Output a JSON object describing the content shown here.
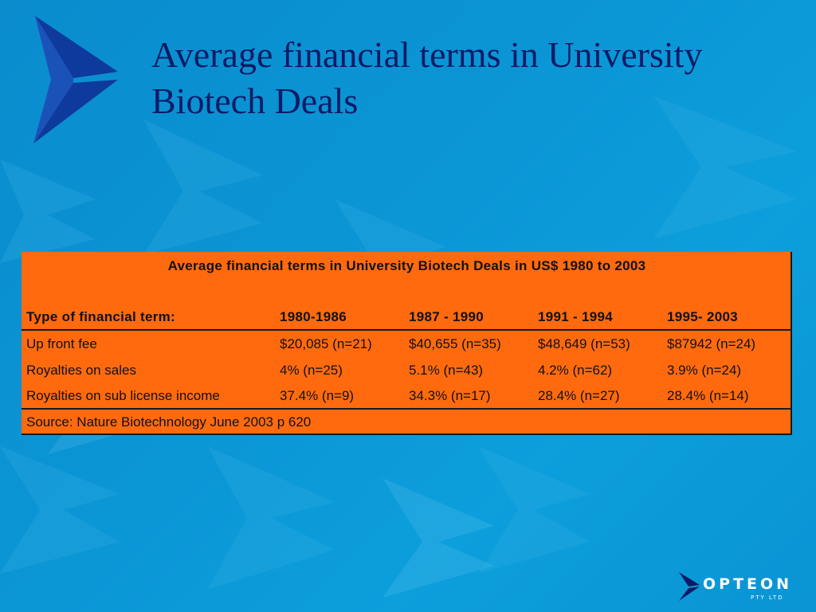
{
  "slide": {
    "title_line1": "Average financial terms in University",
    "title_line2": "Biotech Deals"
  },
  "table": {
    "caption": "Average financial terms in University Biotech Deals in US$ 1980 to 2003",
    "headers": [
      "Type of financial term:",
      "1980-1986",
      "1987 - 1990",
      "1991 - 1994",
      "1995- 2003"
    ],
    "rows": [
      [
        "Up front fee",
        "$20,085 (n=21)",
        "$40,655 (n=35)",
        "$48,649 (n=53)",
        "$87942 (n=24)"
      ],
      [
        "Royalties on sales",
        "4% (n=25)",
        "5.1% (n=43)",
        "4.2% (n=62)",
        "3.9% (n=24)"
      ],
      [
        "Royalties on sub license income",
        "37.4% (n=9)",
        "34.3% (n=17)",
        "28.4% (n=27)",
        "28.4% (n=14)"
      ]
    ],
    "source": "Source: Nature Biotechnology June 2003 p 620"
  },
  "logo": {
    "name": "OPTEON",
    "subtitle": "PTY LTD"
  },
  "colors": {
    "background": "#0b96d6",
    "table_fill": "#ff6a0f",
    "title_text": "#0d1b66",
    "logo_mark": "#0d3a9c"
  }
}
